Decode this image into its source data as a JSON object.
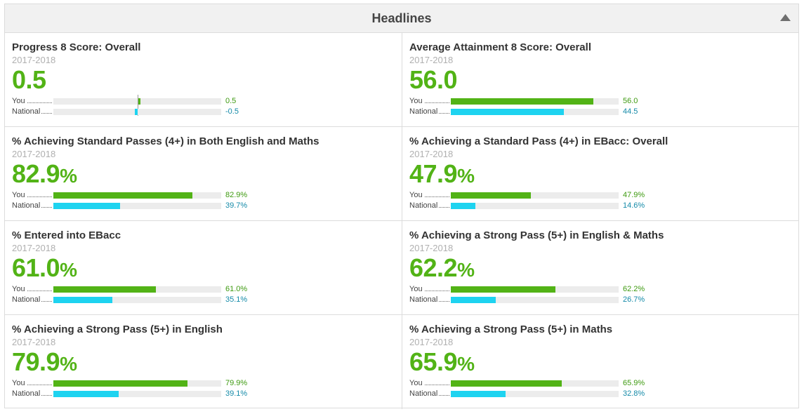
{
  "header": {
    "title": "Headlines"
  },
  "colors": {
    "you": "#52b316",
    "national": "#1ed3f0"
  },
  "labels": {
    "you": "You",
    "national": "National"
  },
  "cards": [
    {
      "title": "Progress 8 Score: Overall",
      "year": "2017-2018",
      "value": "0.5",
      "suffix": "",
      "you_value": "0.5",
      "national_value": "-0.5",
      "you": 0.5,
      "national": -0.5,
      "scale": "diverging"
    },
    {
      "title": "Average Attainment 8 Score: Overall",
      "year": "2017-2018",
      "value": "56.0",
      "suffix": "",
      "you_value": "56.0",
      "national_value": "44.5",
      "you": 56.0,
      "national": 44.5,
      "max": 66
    },
    {
      "title": "% Achieving Standard Passes (4+) in Both English and Maths",
      "year": "2017-2018",
      "value": "82.9",
      "suffix": "%",
      "you_value": "82.9%",
      "national_value": "39.7%",
      "you": 82.9,
      "national": 39.7,
      "max": 100
    },
    {
      "title": "% Achieving a Standard Pass (4+) in EBacc: Overall",
      "year": "2017-2018",
      "value": "47.9",
      "suffix": "%",
      "you_value": "47.9%",
      "national_value": "14.6%",
      "you": 47.9,
      "national": 14.6,
      "max": 100
    },
    {
      "title": "% Entered into EBacc",
      "year": "2017-2018",
      "value": "61.0",
      "suffix": "%",
      "you_value": "61.0%",
      "national_value": "35.1%",
      "you": 61.0,
      "national": 35.1,
      "max": 100
    },
    {
      "title": "% Achieving a Strong Pass (5+) in English & Maths",
      "year": "2017-2018",
      "value": "62.2",
      "suffix": "%",
      "you_value": "62.2%",
      "national_value": "26.7%",
      "you": 62.2,
      "national": 26.7,
      "max": 100
    },
    {
      "title": "% Achieving a Strong Pass (5+) in English",
      "year": "2017-2018",
      "value": "79.9",
      "suffix": "%",
      "you_value": "79.9%",
      "national_value": "39.1%",
      "you": 79.9,
      "national": 39.1,
      "max": 100
    },
    {
      "title": "% Achieving a Strong Pass (5+) in Maths",
      "year": "2017-2018",
      "value": "65.9",
      "suffix": "%",
      "you_value": "65.9%",
      "national_value": "32.8%",
      "you": 65.9,
      "national": 32.8,
      "max": 100
    }
  ]
}
